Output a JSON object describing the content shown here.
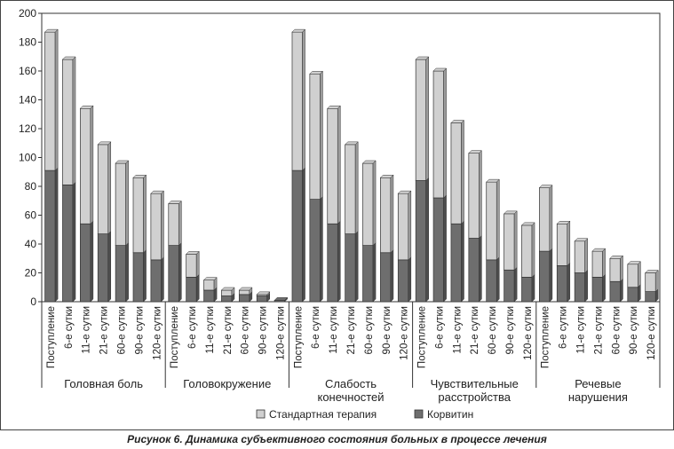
{
  "caption": "Рисунок 6. Динамика субъективного состояния больных в процессе лечения",
  "chart_data": {
    "type": "bar",
    "stacked": true,
    "bar_style": "3d",
    "ylim": [
      0,
      200
    ],
    "yticks": [
      0,
      20,
      40,
      60,
      80,
      100,
      120,
      140,
      160,
      180,
      200
    ],
    "grid": false,
    "legend_position": "bottom",
    "colors": {
      "Корвитин": "#6e6e6e",
      "Стандартная терапия": "#d0d0d0"
    },
    "groups": [
      {
        "label": [
          "Головная боль"
        ],
        "categories": [
          "Поступление",
          "6-е сутки",
          "11-е сутки",
          "21-е сутки",
          "60-е сутки",
          "90-е сутки",
          "120-е сутки"
        ],
        "series": [
          {
            "name": "Корвитин",
            "values": [
              91,
              81,
              54,
              47,
              39,
              34,
              29
            ]
          },
          {
            "name": "Стандартная терапия",
            "values": [
              96,
              87,
              80,
              62,
              57,
              52,
              46
            ]
          }
        ]
      },
      {
        "label": [
          "Головокружение"
        ],
        "categories": [
          "Поступление",
          "6-е сутки",
          "11-е сутки",
          "21-е сутки",
          "60-е сутки",
          "90-е сутки",
          "120-е сутки"
        ],
        "series": [
          {
            "name": "Корвитин",
            "values": [
              39,
              17,
              8,
              4,
              5,
              4,
              1
            ]
          },
          {
            "name": "Стандартная терапия",
            "values": [
              29,
              16,
              7,
              4,
              3,
              1,
              0
            ]
          }
        ]
      },
      {
        "label": [
          "Слабость",
          "конечностей"
        ],
        "categories": [
          "Поступление",
          "6-е сутки",
          "11-е сутки",
          "21-е сутки",
          "60-е сутки",
          "90-е сутки",
          "120-е сутки"
        ],
        "series": [
          {
            "name": "Корвитин",
            "values": [
              91,
              71,
              54,
              47,
              39,
              34,
              29
            ]
          },
          {
            "name": "Стандартная терапия",
            "values": [
              96,
              87,
              80,
              62,
              57,
              52,
              46
            ]
          }
        ]
      },
      {
        "label": [
          "Чувствительные",
          "расстройства"
        ],
        "categories": [
          "Поступление",
          "6-е сутки",
          "11-е сутки",
          "21-е сутки",
          "60-е сутки",
          "90-е сутки",
          "120-е сутки"
        ],
        "series": [
          {
            "name": "Корвитин",
            "values": [
              84,
              72,
              54,
              44,
              29,
              22,
              17
            ]
          },
          {
            "name": "Стандартная терапия",
            "values": [
              84,
              88,
              70,
              59,
              54,
              39,
              36
            ]
          }
        ]
      },
      {
        "label": [
          "Речевые",
          "нарушения"
        ],
        "categories": [
          "Поступление",
          "6-е сутки",
          "11-е сутки",
          "21-е сутки",
          "60-е сутки",
          "90-е сутки",
          "120-е сутки"
        ],
        "series": [
          {
            "name": "Корвитин",
            "values": [
              35,
              25,
              20,
              17,
              14,
              10,
              7
            ]
          },
          {
            "name": "Стандартная терапия",
            "values": [
              44,
              29,
              22,
              18,
              16,
              16,
              13
            ]
          }
        ]
      }
    ],
    "legend": [
      {
        "name": "Стандартная терапия",
        "color": "#d0d0d0"
      },
      {
        "name": "Корвитин",
        "color": "#6e6e6e"
      }
    ]
  }
}
